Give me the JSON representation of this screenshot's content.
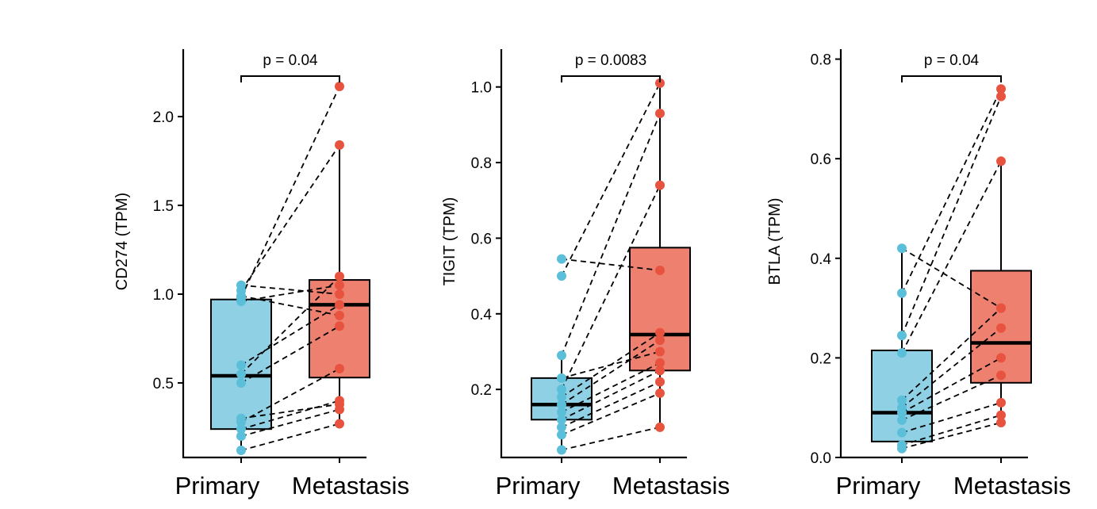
{
  "colors": {
    "primary": "#8fd0e4",
    "primary_point": "#5bbfd9",
    "metastasis": "#ee8070",
    "metastasis_point": "#e8533f",
    "line": "#000000"
  },
  "chart_data": [
    {
      "type": "box",
      "gene": "CD274",
      "ylabel": "CD274 (TPM)",
      "ylim": [
        0.08,
        2.38
      ],
      "yticks": [
        0.5,
        1.0,
        1.5,
        2.0
      ],
      "ytick_labels": [
        "0.5",
        "1.0",
        "1.5",
        "2.0"
      ],
      "categories": [
        "Primary",
        "Metastasis"
      ],
      "p_label": "p = 0.04",
      "boxes": [
        {
          "q1": 0.24,
          "median": 0.54,
          "q3": 0.97,
          "whisker_low": 0.12,
          "whisker_high": 1.05
        },
        {
          "q1": 0.53,
          "median": 0.94,
          "q3": 1.08,
          "whisker_low": 0.27,
          "whisker_high": 1.84
        }
      ],
      "pairs": [
        [
          0.12,
          0.27
        ],
        [
          0.2,
          0.35
        ],
        [
          0.24,
          0.4
        ],
        [
          0.28,
          0.58
        ],
        [
          0.3,
          0.38
        ],
        [
          0.5,
          0.82
        ],
        [
          0.55,
          1.1
        ],
        [
          0.6,
          0.94
        ],
        [
          0.96,
          1.05
        ],
        [
          0.99,
          0.88
        ],
        [
          1.02,
          1.84
        ],
        [
          1.05,
          1.0
        ],
        [
          0.98,
          2.17
        ]
      ]
    },
    {
      "type": "box",
      "gene": "TIGIT",
      "ylabel": "TIGIT (TPM)",
      "ylim": [
        0.02,
        1.1
      ],
      "yticks": [
        0.2,
        0.4,
        0.6,
        0.8,
        1.0
      ],
      "ytick_labels": [
        "0.2",
        "0.4",
        "0.6",
        "0.8",
        "1.0"
      ],
      "categories": [
        "Primary",
        "Metastasis"
      ],
      "p_label": "p = 0.0083",
      "boxes": [
        {
          "q1": 0.12,
          "median": 0.16,
          "q3": 0.23,
          "whisker_low": 0.04,
          "whisker_high": 0.29
        },
        {
          "q1": 0.25,
          "median": 0.345,
          "q3": 0.575,
          "whisker_low": 0.1,
          "whisker_high": 1.01
        }
      ],
      "pairs": [
        [
          0.04,
          0.1
        ],
        [
          0.08,
          0.19
        ],
        [
          0.1,
          0.22
        ],
        [
          0.12,
          0.25
        ],
        [
          0.14,
          0.27
        ],
        [
          0.16,
          0.33
        ],
        [
          0.18,
          0.35
        ],
        [
          0.2,
          0.74
        ],
        [
          0.29,
          0.93
        ],
        [
          0.5,
          1.01
        ],
        [
          0.545,
          0.515
        ],
        [
          0.23,
          0.3
        ]
      ]
    },
    {
      "type": "box",
      "gene": "BTLA",
      "ylabel": "BTLA (TPM)",
      "ylim": [
        0.0,
        0.82
      ],
      "yticks": [
        0.0,
        0.2,
        0.4,
        0.6,
        0.8
      ],
      "ytick_labels": [
        "0.0",
        "0.2",
        "0.4",
        "0.6",
        "0.8"
      ],
      "categories": [
        "Primary",
        "Metastasis"
      ],
      "p_label": "p = 0.04",
      "boxes": [
        {
          "q1": 0.032,
          "median": 0.09,
          "q3": 0.215,
          "whisker_low": 0.018,
          "whisker_high": 0.42
        },
        {
          "q1": 0.15,
          "median": 0.23,
          "q3": 0.375,
          "whisker_low": 0.07,
          "whisker_high": 0.595
        },
        {
          "skip": true
        }
      ],
      "pairs": [
        [
          0.018,
          0.07
        ],
        [
          0.025,
          0.085
        ],
        [
          0.05,
          0.11
        ],
        [
          0.075,
          0.165
        ],
        [
          0.09,
          0.2
        ],
        [
          0.1,
          0.26
        ],
        [
          0.115,
          0.3
        ],
        [
          0.21,
          0.595
        ],
        [
          0.245,
          0.725
        ],
        [
          0.33,
          0.74
        ],
        [
          0.42,
          0.3
        ]
      ]
    }
  ]
}
